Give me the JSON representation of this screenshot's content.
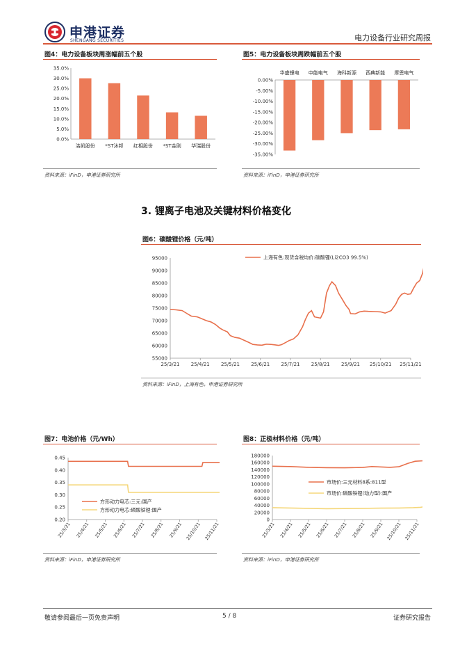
{
  "header": {
    "brand_name": "申港证券",
    "brand_sub": "SHENGANG SECURITIES",
    "report_type": "电力设备行业研究周报"
  },
  "colors": {
    "bar": "#ec7a57",
    "line_primary": "#e8704c",
    "line_secondary": "#f5d77a",
    "accent_rule": "#d9593a"
  },
  "section": {
    "title": "3. 锂离子电池及关键材料价格变化"
  },
  "figures": {
    "fig4": {
      "title": "图4：电力设备板块周涨幅前五个股",
      "source": "资料来源：iFinD，申港证券研究所"
    },
    "fig5": {
      "title": "图5：电力设备板块周跌幅前五个股",
      "source": "资料来源：iFinD，申港证券研究所"
    },
    "fig6": {
      "title": "图6：碳酸锂价格（元/吨）",
      "source": "资料来源：iFinD，上海有色，申港证券研究所"
    },
    "fig7": {
      "title": "图7：电池价格（元/Wh）",
      "source": "资料来源：iFinD，申港证券研究所"
    },
    "fig8": {
      "title": "图8：正极材料价格（元/吨）",
      "source": "资料来源：iFinD，申港证券研究所"
    }
  },
  "footer": {
    "left": "敬请参阅最后一页免责声明",
    "page": "5 / 8",
    "right": "证券研究报告"
  },
  "chart_data": [
    {
      "id": "fig4",
      "type": "bar",
      "categories": [
        "洛凯股份",
        "*ST沐邦",
        "红相股份",
        "*ST金刚",
        "华瑞股份"
      ],
      "values": [
        0.3,
        0.276,
        0.215,
        0.132,
        0.115
      ],
      "yticks": [
        "35.0%",
        "30.0%",
        "25.0%",
        "20.0%",
        "15.0%",
        "10.0%",
        "5.0%",
        "0.0%"
      ],
      "ylim": [
        0,
        0.35
      ],
      "label_position": "bottom",
      "grid": false
    },
    {
      "id": "fig5",
      "type": "bar",
      "categories": [
        "华盛锂电",
        "中能电气",
        "海科新源",
        "西典新能",
        "摩恩电气"
      ],
      "values": [
        -0.332,
        -0.283,
        -0.25,
        -0.236,
        -0.232
      ],
      "yticks": [
        "0.00%",
        "-5.00%",
        "-10.00%",
        "-15.00%",
        "-20.00%",
        "-25.00%",
        "-30.00%",
        "-35.00%"
      ],
      "ylim": [
        -0.35,
        0
      ],
      "label_position": "top",
      "grid": false
    },
    {
      "id": "fig6",
      "type": "line",
      "x_ticks": [
        "25/3/21",
        "25/4/21",
        "25/5/21",
        "25/6/21",
        "25/7/21",
        "25/8/21",
        "25/9/21",
        "25/10/21",
        "25/11/21"
      ],
      "yticks": [
        "95000",
        "90000",
        "85000",
        "80000",
        "75000",
        "70000",
        "65000",
        "60000",
        "55000"
      ],
      "ylim": [
        55000,
        95000
      ],
      "legend_position": "top-right",
      "series": [
        {
          "name": "上海有色:现货含税均价:碳酸锂(Li2CO3 99.5%)",
          "points": [
            [
              0,
              74500
            ],
            [
              0.2,
              74300
            ],
            [
              0.4,
              74000
            ],
            [
              0.6,
              72500
            ],
            [
              0.7,
              71800
            ],
            [
              0.9,
              71500
            ],
            [
              1.0,
              71000
            ],
            [
              1.2,
              70000
            ],
            [
              1.35,
              69500
            ],
            [
              1.5,
              68500
            ],
            [
              1.65,
              67000
            ],
            [
              1.75,
              66300
            ],
            [
              1.9,
              65500
            ],
            [
              2.0,
              64000
            ],
            [
              2.15,
              63300
            ],
            [
              2.3,
              63000
            ],
            [
              2.45,
              62200
            ],
            [
              2.6,
              61400
            ],
            [
              2.75,
              60500
            ],
            [
              2.9,
              60300
            ],
            [
              3.05,
              60200
            ],
            [
              3.2,
              60600
            ],
            [
              3.35,
              60500
            ],
            [
              3.5,
              60300
            ],
            [
              3.6,
              60100
            ],
            [
              3.7,
              60400
            ],
            [
              3.8,
              61000
            ],
            [
              3.95,
              62000
            ],
            [
              4.1,
              62700
            ],
            [
              4.25,
              64300
            ],
            [
              4.4,
              67500
            ],
            [
              4.5,
              70500
            ],
            [
              4.6,
              73000
            ],
            [
              4.7,
              74000
            ],
            [
              4.8,
              71500
            ],
            [
              5.0,
              71000
            ],
            [
              5.1,
              73500
            ],
            [
              5.2,
              81000
            ],
            [
              5.3,
              84000
            ],
            [
              5.38,
              85500
            ],
            [
              5.5,
              84000
            ],
            [
              5.6,
              81000
            ],
            [
              5.75,
              78000
            ],
            [
              5.85,
              76000
            ],
            [
              5.95,
              74500
            ],
            [
              6.0,
              72800
            ],
            [
              6.15,
              72700
            ],
            [
              6.3,
              73500
            ],
            [
              6.45,
              73800
            ],
            [
              6.6,
              73700
            ],
            [
              6.8,
              73600
            ],
            [
              7.0,
              73500
            ],
            [
              7.15,
              73000
            ],
            [
              7.35,
              74000
            ],
            [
              7.5,
              76500
            ],
            [
              7.6,
              79000
            ],
            [
              7.7,
              80500
            ],
            [
              7.8,
              81000
            ],
            [
              7.9,
              80500
            ],
            [
              8.0,
              80700
            ],
            [
              8.1,
              83000
            ],
            [
              8.2,
              85000
            ],
            [
              8.3,
              86000
            ],
            [
              8.4,
              89000
            ],
            [
              8.45,
              92000
            ]
          ]
        }
      ]
    },
    {
      "id": "fig7",
      "type": "line",
      "x_ticks": [
        "25/3/21",
        "25/4/21",
        "25/5/21",
        "25/6/21",
        "25/7/21",
        "25/8/21",
        "25/9/21",
        "25/10/21",
        "25/11/21"
      ],
      "yticks": [
        "0.45",
        "0.40",
        "0.35",
        "0.30",
        "0.25",
        "0.20"
      ],
      "ylim": [
        0.2,
        0.45
      ],
      "legend_position": "lower-left",
      "series": [
        {
          "name": "方形动力电芯:三元:国产",
          "color_key": "line_primary",
          "points": [
            [
              0,
              0.435
            ],
            [
              3.2,
              0.435
            ],
            [
              3.25,
              0.415
            ],
            [
              7.2,
              0.415
            ],
            [
              7.25,
              0.43
            ],
            [
              8.5,
              0.43
            ]
          ]
        },
        {
          "name": "方形动力电芯:磷酸铁锂:国产",
          "color_key": "line_secondary",
          "points": [
            [
              0,
              0.34
            ],
            [
              3.2,
              0.34
            ],
            [
              3.25,
              0.31
            ],
            [
              8.5,
              0.31
            ]
          ]
        }
      ]
    },
    {
      "id": "fig8",
      "type": "line",
      "x_ticks": [
        "25/3/21",
        "25/4/21",
        "25/5/21",
        "25/6/21",
        "25/7/21",
        "25/8/21",
        "25/9/21",
        "25/10/21",
        "25/11/21"
      ],
      "yticks": [
        "180000",
        "160000",
        "140000",
        "120000",
        "100000",
        "80000",
        "60000",
        "40000",
        "20000",
        "0"
      ],
      "ylim": [
        0,
        180000
      ],
      "legend_position": "center",
      "series": [
        {
          "name": "市场价:三元材料8系:811型",
          "color_key": "line_primary",
          "points": [
            [
              0,
              150000
            ],
            [
              1,
              149000
            ],
            [
              2,
              147000
            ],
            [
              3,
              146000
            ],
            [
              4,
              145500
            ],
            [
              5,
              146500
            ],
            [
              5.5,
              149000
            ],
            [
              6.5,
              147000
            ],
            [
              7,
              148500
            ],
            [
              7.5,
              158000
            ],
            [
              7.9,
              164000
            ],
            [
              8.5,
              166000
            ]
          ]
        },
        {
          "name": "市场价:磷酸铁锂(动力型):国产",
          "color_key": "line_secondary",
          "points": [
            [
              0,
              33500
            ],
            [
              1,
              32500
            ],
            [
              2,
              31500
            ],
            [
              3,
              30500
            ],
            [
              4,
              31000
            ],
            [
              5,
              31500
            ],
            [
              6,
              32000
            ],
            [
              7,
              32500
            ],
            [
              7.8,
              33500
            ],
            [
              8.2,
              34500
            ],
            [
              8.5,
              37000
            ]
          ]
        }
      ]
    }
  ]
}
